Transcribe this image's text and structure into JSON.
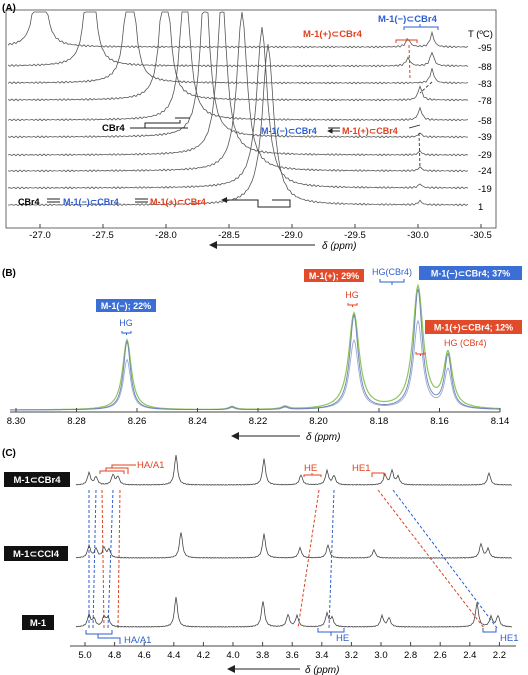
{
  "colors": {
    "blue": "#2e5fd0",
    "red": "#e0411f",
    "trace": "#555555",
    "green": "#8cc65a",
    "fitblue": "#8aa6e8",
    "badge_blue": "#3b6fd6",
    "badge_red": "#e24b2a"
  },
  "panelA": {
    "label": "(A)",
    "temp_header": "T (ºC)",
    "temps": [
      "-95",
      "-88",
      "-83",
      "-78",
      "-58",
      "-39",
      "-29",
      "-24",
      "-19",
      "1"
    ],
    "top_blue": "M-1(−)⊂CBr4",
    "top_red": "M-1(+)⊂CBr4",
    "cbr4_label": "CBr4",
    "mid_blue": "M-1(−)⊂CBr4",
    "mid_red": "M-1(+)⊂CBr4",
    "bottom_cbr4": "CBr4",
    "bottom_blue": "M-1(−)⊂CBr4",
    "bottom_red": "M-1(+)⊂CBr4",
    "ticks": [
      "-27.0",
      "-27.5",
      "-28.0",
      "-28.5",
      "-29.0",
      "-29.5",
      "-30.0",
      "-30.5"
    ],
    "axis_label": "δ (ppm)"
  },
  "panelB": {
    "label": "(B)",
    "badge1": "M-1(−); 22%",
    "badge2": "M-1(+); 29%",
    "badge3": "M-1(−)⊂CBr4; 37%",
    "badge4": "M-1(+)⊂CBr4; 12%",
    "hg1": "HG",
    "hg2": "HG",
    "hg3": "HG(CBr4)",
    "hg4": "HG (CBr4)",
    "ticks": [
      "8.30",
      "8.28",
      "8.26",
      "8.24",
      "8.22",
      "8.20",
      "8.18",
      "8.16",
      "8.14"
    ],
    "axis_label": "δ (ppm)"
  },
  "panelC": {
    "label": "(C)",
    "row1": "M-1⊂CBr4",
    "row2": "M-1⊂CCl4",
    "row3": "M-1",
    "h_aa1_top": "HA/A1",
    "h_e_top": "HE",
    "h_e1_top": "HE1",
    "h_aa1_bot": "HA/A1",
    "h_e_bot": "HE",
    "h_e1_bot": "HE1",
    "ticks": [
      "5.0",
      "4.8",
      "4.6",
      "4.4",
      "4.2",
      "4.0",
      "3.8",
      "3.6",
      "3.4",
      "3.2",
      "3.0",
      "2.8",
      "2.6",
      "2.4",
      "2.2"
    ],
    "axis_label": "δ (ppm)"
  }
}
